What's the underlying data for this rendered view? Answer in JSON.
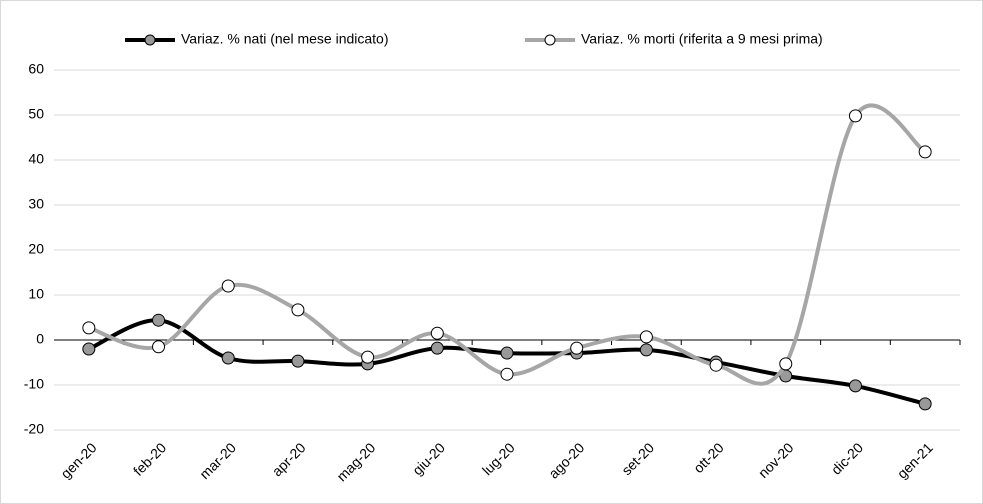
{
  "chart_data": {
    "type": "line",
    "categories": [
      "gen-20",
      "feb-20",
      "mar-20",
      "apr-20",
      "mag-20",
      "giu-20",
      "lug-20",
      "ago-20",
      "set-20",
      "ott-20",
      "nov-20",
      "dic-20",
      "gen-21"
    ],
    "series": [
      {
        "name": "Variaz. % nati (nel mese indicato)",
        "color": "#000000",
        "marker_color": "#999999",
        "values": [
          -2,
          4.4,
          -4,
          -4.7,
          -5.3,
          -1.8,
          -2.9,
          -2.9,
          -2.2,
          -4.9,
          -8,
          -10.2,
          -14.2
        ]
      },
      {
        "name": "Variaz. % morti (riferita a 9 mesi prima)",
        "color": "#a6a6a6",
        "marker_color": "#ffffff",
        "values": [
          2.7,
          -1.5,
          12,
          6.7,
          -3.8,
          1.5,
          -7.6,
          -1.8,
          0.7,
          -5.6,
          -5.3,
          49.8,
          41.8
        ]
      }
    ],
    "ylim": [
      -20,
      60
    ],
    "yticks": [
      -20,
      -10,
      0,
      10,
      20,
      30,
      40,
      50,
      60
    ],
    "grid": true,
    "smooth": true,
    "legend": "top"
  }
}
